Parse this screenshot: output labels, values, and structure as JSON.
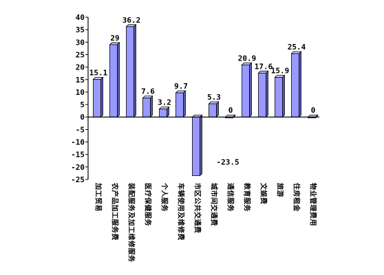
{
  "chart_data": {
    "type": "bar",
    "title": "",
    "xlabel": "",
    "ylabel": "",
    "ylim": [
      -25,
      40
    ],
    "ytick_step": 5,
    "ytick_labels": [
      "40",
      "35",
      "30",
      "25",
      "20",
      "15",
      "10",
      "5",
      "0",
      "-5",
      "-10",
      "-15",
      "-20",
      "-25"
    ],
    "grid": false,
    "legend": "none",
    "bar_color": "#9999ff",
    "bar_edge_color": "#000000",
    "categories": [
      "加工贸易",
      "农产品加工服务费",
      "装配服务及加工维修服务",
      "医疗保健服务",
      "个人服务",
      "车辆使用及维修费",
      "市区公共交通费",
      "城市间交通费",
      "通信服务",
      "教育服务",
      "文娱费",
      "旅游",
      "住房租金",
      "物业管理费用"
    ],
    "values": [
      15.1,
      29,
      36.2,
      7.6,
      3.2,
      9.7,
      -23.5,
      5.3,
      0,
      20.9,
      17.6,
      15.9,
      25.4,
      0
    ],
    "data_labels": [
      "15.1",
      "29",
      "36.2",
      "7.6",
      "3.2",
      "9.7",
      "-23.5",
      "5.3",
      "0",
      "20.9",
      "17.6",
      "15.9",
      "25.4",
      "0"
    ]
  }
}
